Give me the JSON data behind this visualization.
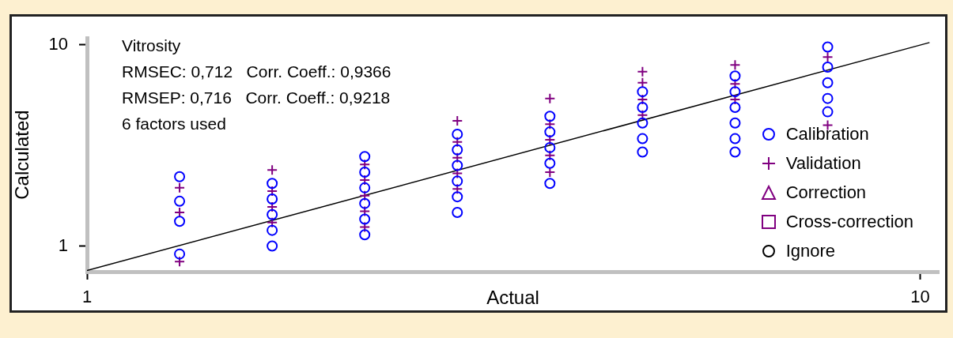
{
  "chart_data": {
    "type": "scatter",
    "xlabel": "Actual",
    "ylabel": "Calculated",
    "annotations": [
      "Vitrosity",
      "RMSEC: 0,712   Corr. Coeff.: 0,9366",
      "RMSEP: 0,716   Corr. Coeff.: 0,9218",
      "6 factors used"
    ],
    "xlim": [
      1,
      10.2
    ],
    "ylim": [
      -0.15,
      10.3
    ],
    "xticks": [
      1,
      10
    ],
    "yticks": [
      1,
      10
    ],
    "grid": false,
    "legend": "right",
    "series": [
      {
        "name": "Calibration",
        "color": "#0000ff",
        "marker": "circle",
        "x": [
          2,
          2,
          2,
          2,
          3,
          3,
          3,
          3,
          3,
          4,
          4,
          4,
          4,
          4,
          4,
          5,
          5,
          5,
          5,
          5,
          5,
          6,
          6,
          6,
          6,
          6,
          7,
          7,
          7,
          7,
          7,
          8,
          8,
          8,
          8,
          8,
          8,
          9,
          9,
          9,
          9,
          9
        ],
        "values": [
          4.1,
          3.0,
          2.1,
          0.64,
          3.8,
          3.1,
          2.4,
          1.7,
          1.0,
          5.0,
          4.3,
          3.6,
          2.9,
          2.2,
          1.5,
          6.0,
          5.3,
          4.6,
          3.9,
          3.2,
          2.5,
          6.8,
          6.1,
          5.4,
          4.7,
          3.8,
          7.9,
          7.2,
          6.5,
          5.8,
          5.2,
          8.6,
          7.9,
          7.2,
          6.5,
          5.8,
          5.2,
          9.9,
          9.0,
          8.3,
          7.6,
          7.0
        ]
      },
      {
        "name": "Validation",
        "color": "#800080",
        "marker": "cross",
        "x": [
          2,
          2,
          2,
          3,
          3,
          3,
          3,
          4,
          4,
          4,
          4,
          4,
          5,
          5,
          5,
          5,
          5,
          6,
          6,
          6,
          6,
          6,
          7,
          7,
          7,
          7,
          8,
          8,
          8,
          9,
          9
        ],
        "values": [
          3.6,
          2.5,
          0.3,
          4.4,
          3.45,
          2.75,
          2.05,
          4.65,
          3.95,
          3.25,
          2.55,
          1.85,
          6.6,
          5.65,
          4.95,
          4.25,
          3.55,
          7.6,
          6.45,
          5.75,
          5.05,
          4.3,
          8.8,
          8.3,
          7.55,
          6.85,
          9.1,
          8.25,
          7.55,
          9.45,
          6.4
        ]
      },
      {
        "name": "Correction",
        "color": "#800080",
        "marker": "triangle"
      },
      {
        "name": "Cross-correction",
        "color": "#800080",
        "marker": "square"
      },
      {
        "name": "Ignore",
        "color": "#000000",
        "marker": "circle"
      },
      {
        "type": "line",
        "color": "#000000",
        "marker": "none",
        "x": [
          1,
          10.1
        ],
        "values": [
          -0.1,
          10.1
        ]
      }
    ]
  }
}
